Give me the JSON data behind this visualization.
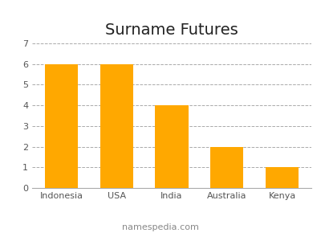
{
  "title": "Surname Futures",
  "categories": [
    "Indonesia",
    "USA",
    "India",
    "Australia",
    "Kenya"
  ],
  "values": [
    6,
    6,
    4,
    2,
    1
  ],
  "bar_color": "#FFA800",
  "ylim": [
    0,
    7
  ],
  "yticks": [
    0,
    1,
    2,
    3,
    4,
    5,
    6,
    7
  ],
  "grid_color": "#aaaaaa",
  "background_color": "#ffffff",
  "title_fontsize": 14,
  "tick_fontsize": 8,
  "footer_text": "namespedia.com",
  "footer_fontsize": 8,
  "footer_color": "#888888"
}
